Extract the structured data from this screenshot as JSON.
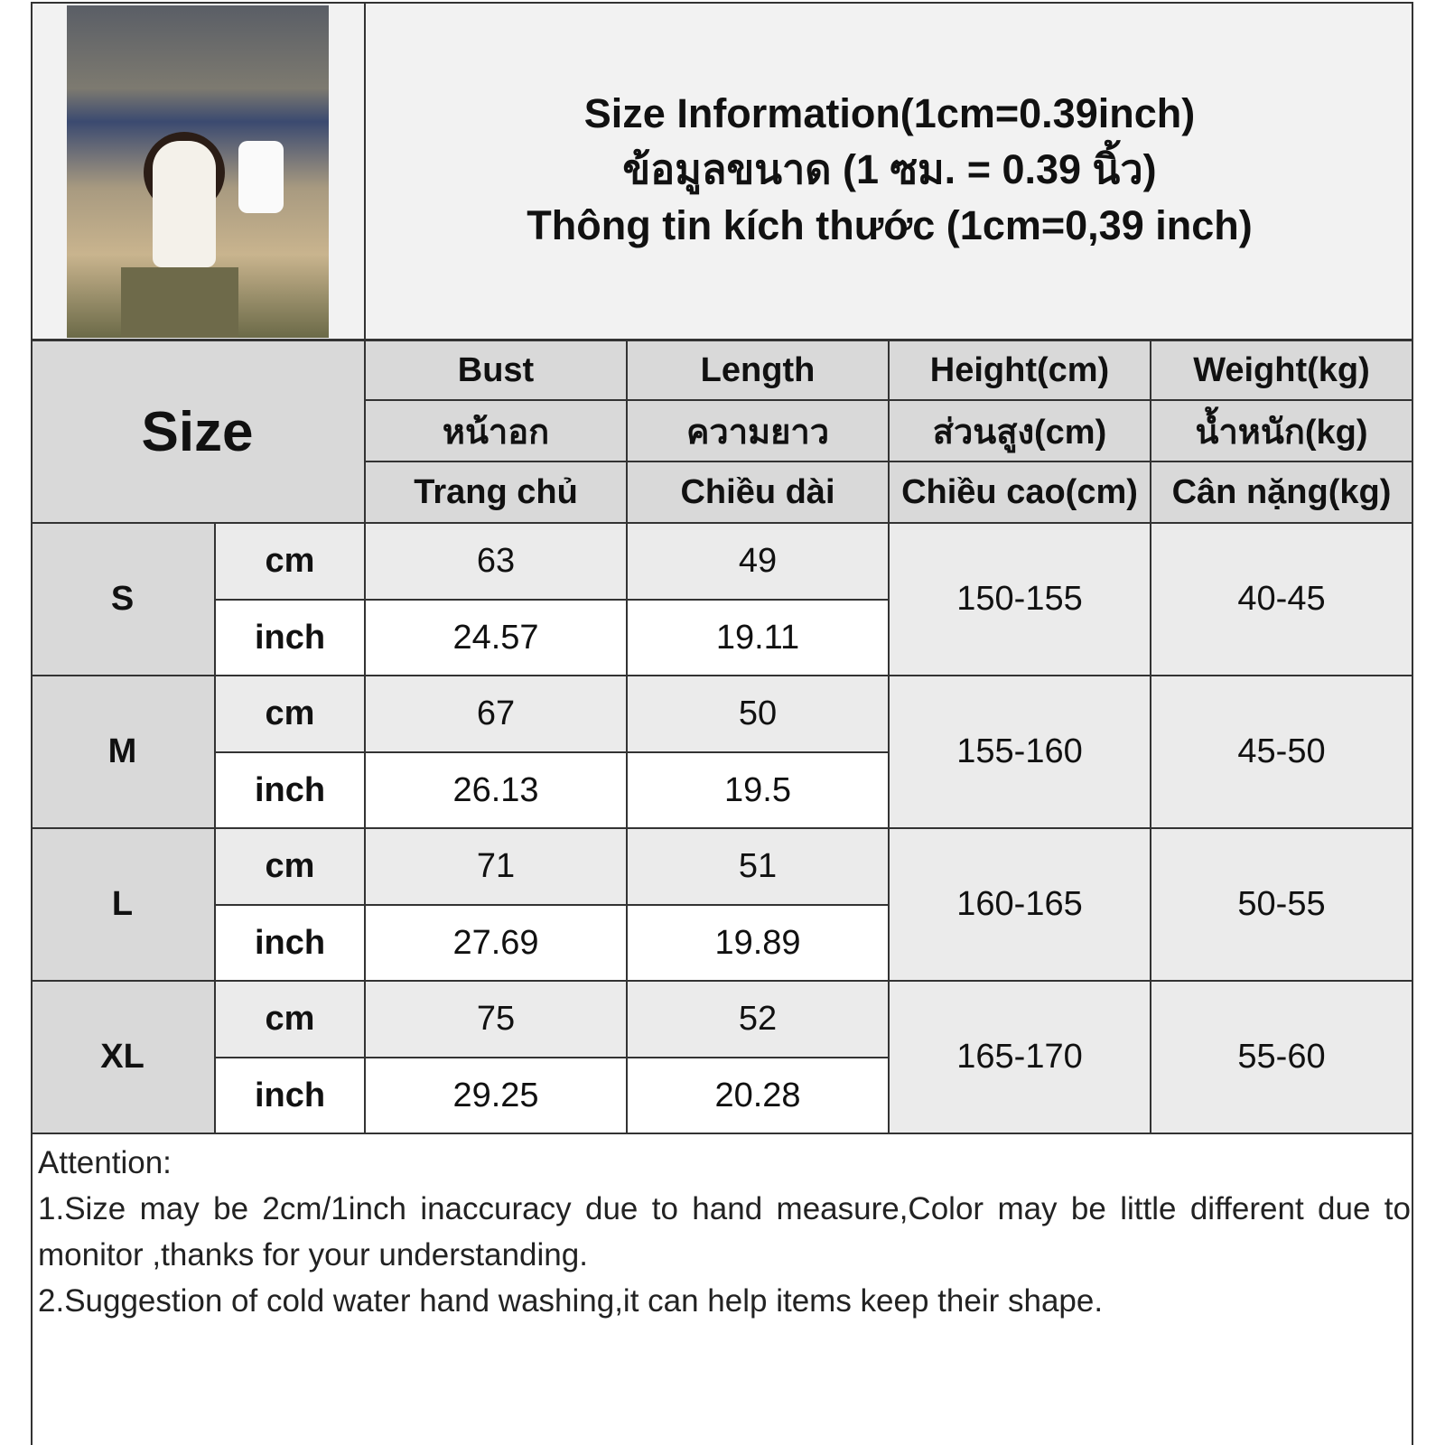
{
  "header": {
    "title_lines": [
      "Size Information(1cm=0.39inch)",
      "ข้อมูลขนาด (1 ซม. = 0.39 นิ้ว)",
      "Thông tin kích thước (1cm=0,39 inch)"
    ]
  },
  "table": {
    "size_label": "Size",
    "columns": [
      {
        "en": "Bust",
        "th": "หน้าอก",
        "vi": "Trang chủ"
      },
      {
        "en": "Length",
        "th": "ความยาว",
        "vi": "Chiều dài"
      },
      {
        "en": "Height(cm)",
        "th": "ส่วนสูง(cm)",
        "vi": "Chiều cao(cm)"
      },
      {
        "en": "Weight(kg)",
        "th": "น้ำหนัก(kg)",
        "vi": "Cân nặng(kg)"
      }
    ],
    "unit_cm": "cm",
    "unit_inch": "inch",
    "rows": [
      {
        "size": "S",
        "bust_cm": "63",
        "bust_inch": "24.57",
        "length_cm": "49",
        "length_inch": "19.11",
        "height": "150-155",
        "weight": "40-45"
      },
      {
        "size": "M",
        "bust_cm": "67",
        "bust_inch": "26.13",
        "length_cm": "50",
        "length_inch": "19.5",
        "height": "155-160",
        "weight": "45-50"
      },
      {
        "size": "L",
        "bust_cm": "71",
        "bust_inch": "27.69",
        "length_cm": "51",
        "length_inch": "19.89",
        "height": "160-165",
        "weight": "50-55"
      },
      {
        "size": "XL",
        "bust_cm": "75",
        "bust_inch": "29.25",
        "length_cm": "52",
        "length_inch": "20.28",
        "height": "165-170",
        "weight": "55-60"
      }
    ]
  },
  "notes": {
    "heading": "Attention:",
    "items": [
      "1.Size may be 2cm/1inch inaccuracy due to hand measure,Color may be little different due to monitor ,thanks for your understanding.",
      "2.Suggestion of cold water hand washing,it can help items keep their shape."
    ]
  }
}
